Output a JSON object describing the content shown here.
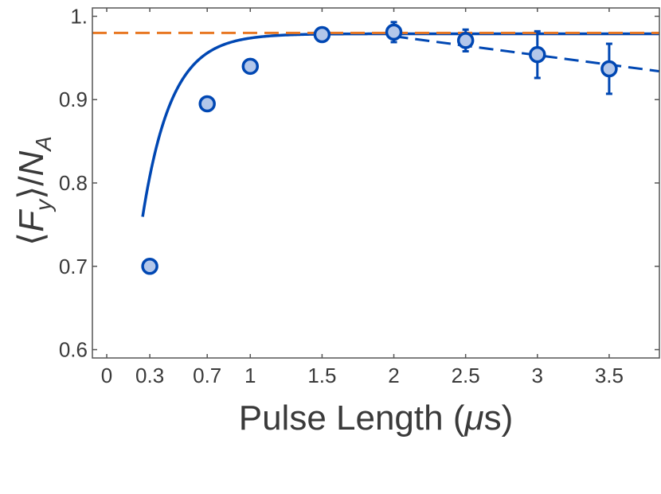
{
  "chart_data": {
    "type": "scatter",
    "title": "",
    "xlabel_parts": [
      "Pulse Length (",
      "μ",
      "s)"
    ],
    "ylabel_parts": {
      "open": "⟨",
      "var": "F",
      "sub": "y",
      "close": "⟩/",
      "var2": "N",
      "sub2": "A"
    },
    "xlim": [
      -0.1,
      3.85
    ],
    "ylim": [
      0.59,
      1.01
    ],
    "xticks": [
      0,
      0.3,
      0.7,
      1,
      1.5,
      2,
      2.5,
      3,
      3.5
    ],
    "xtick_labels": [
      "0",
      "0.3",
      "0.7",
      "1",
      "1.5",
      "2",
      "2.5",
      "3",
      "3.5"
    ],
    "yticks": [
      0.6,
      0.7,
      0.8,
      0.9,
      1.0
    ],
    "ytick_labels": [
      "0.6",
      "0.7",
      "0.8",
      "0.9",
      "1."
    ],
    "grid": false,
    "series": [
      {
        "kind": "points",
        "x": [
          0.3,
          0.7,
          1.0,
          1.5,
          2.0,
          2.5,
          3.0,
          3.5
        ],
        "y": [
          0.7,
          0.895,
          0.94,
          0.978,
          0.981,
          0.971,
          0.954,
          0.937
        ],
        "err": [
          0.0,
          0.0,
          0.0,
          0.0,
          0.012,
          0.013,
          0.028,
          0.03
        ],
        "color": "#0047b3",
        "fill": "#b3c7ea"
      },
      {
        "kind": "fit-saturation",
        "model": "A*(1-exp(-(x-x0)/tau))",
        "A": 0.979,
        "tau": 0.2,
        "x0": -0.049,
        "x_range": [
          0.25,
          3.85
        ],
        "color": "#0047b3",
        "dash": "solid"
      },
      {
        "kind": "fit-linear",
        "x": [
          2.0,
          3.85
        ],
        "y": [
          0.976,
          0.934
        ],
        "color": "#0047b3",
        "dash": "dashed"
      },
      {
        "kind": "hline",
        "y": 0.98,
        "color": "#e87722",
        "dash": "dashed"
      }
    ]
  }
}
